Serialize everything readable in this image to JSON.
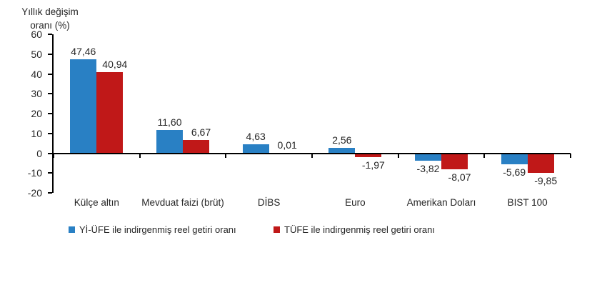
{
  "chart_data": {
    "type": "bar",
    "title": "",
    "ylabel": "Yıllık değişim oranı (%)",
    "axis_title_lines": [
      "Yıllık değişim",
      "oranı (%)"
    ],
    "ylim": [
      -20,
      60
    ],
    "yticks": [
      60,
      50,
      40,
      30,
      20,
      10,
      0,
      -10,
      -20
    ],
    "grid": false,
    "legend_position": "bottom",
    "categories": [
      "Külçe altın",
      "Mevduat faizi (brüt)",
      "DİBS",
      "Euro",
      "Amerikan Doları",
      "BIST 100"
    ],
    "series": [
      {
        "name": "Yİ-ÜFE ile indirgenmiş reel getiri oranı",
        "color": "#2980C4",
        "values": [
          47.46,
          11.6,
          4.63,
          2.56,
          -3.82,
          -5.69
        ],
        "labels": [
          "47,46",
          "11,60",
          "4,63",
          "2,56",
          "-3,82",
          "-5,69"
        ]
      },
      {
        "name": "TÜFE ile indirgenmiş reel getiri oranı",
        "color": "#C01818",
        "values": [
          40.94,
          6.67,
          0.01,
          -1.97,
          -8.07,
          -9.85
        ],
        "labels": [
          "40,94",
          "6,67",
          "0,01",
          "-1,97",
          "-8,07",
          "-9,85"
        ]
      }
    ],
    "axis_color": "#000000",
    "text_color": "#262626"
  }
}
